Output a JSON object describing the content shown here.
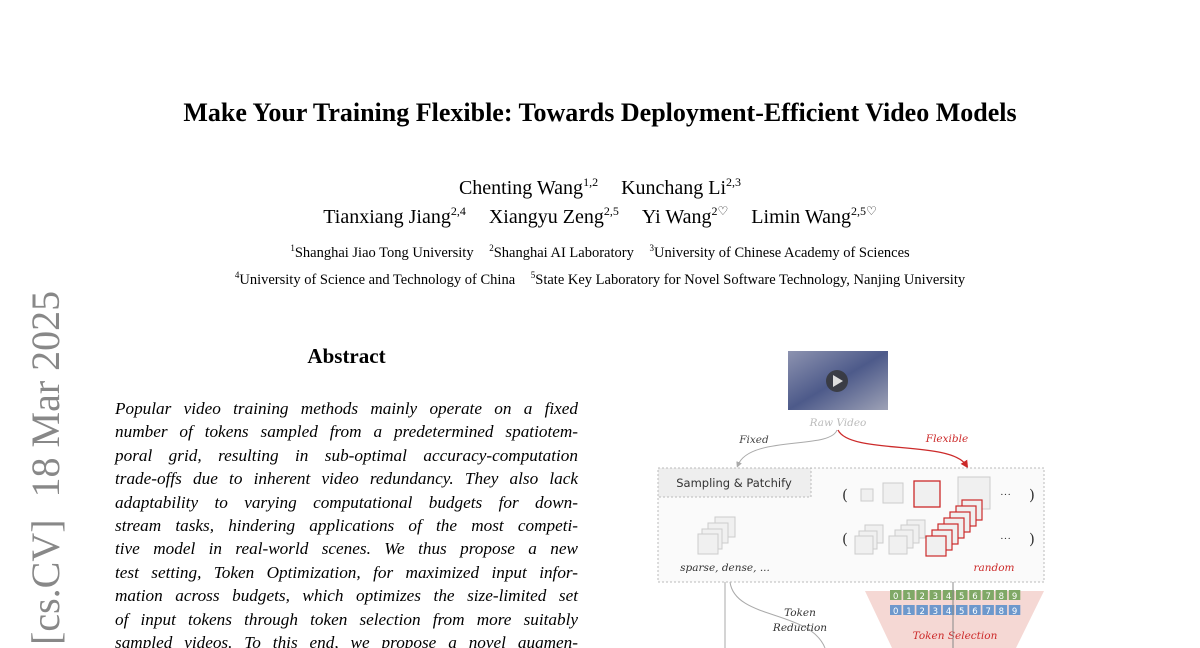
{
  "title": "Make Your Training Flexible: Towards Deployment-Efficient Video Models",
  "authors": [
    [
      {
        "name": "Chenting Wang",
        "sup": "1,2"
      },
      {
        "name": "Kunchang Li",
        "sup": "2,3"
      }
    ],
    [
      {
        "name": "Tianxiang Jiang",
        "sup": "2,4"
      },
      {
        "name": "Xiangyu Zeng",
        "sup": "2,5"
      },
      {
        "name": "Yi Wang",
        "sup": "2♡"
      },
      {
        "name": "Limin Wang",
        "sup": "2,5♡"
      }
    ]
  ],
  "affiliations": [
    [
      {
        "sup": "1",
        "name": "Shanghai Jiao Tong University"
      },
      {
        "sup": "2",
        "name": "Shanghai AI Laboratory"
      },
      {
        "sup": "3",
        "name": "University of Chinese Academy of Sciences"
      }
    ],
    [
      {
        "sup": "4",
        "name": "University of Science and Technology of China"
      },
      {
        "sup": "5",
        "name": "State Key Laboratory for Novel Software Technology, Nanjing University"
      }
    ]
  ],
  "arxiv": {
    "category": "[cs.CV]",
    "date": "18 Mar 2025"
  },
  "abstract": {
    "heading": "Abstract",
    "lines": [
      "Popular video training methods mainly operate on a fixed",
      "number of tokens sampled from a predetermined spatiotem-",
      "poral grid, resulting in sub-optimal accuracy-computation",
      "trade-offs due to inherent video redundancy. They also lack",
      "adaptability to varying computational budgets for down-",
      "stream tasks, hindering applications of the most competi-",
      "tive model in real-world scenes.  We thus propose a new",
      "test setting, Token Optimization, for maximized input infor-",
      "mation across budgets, which optimizes the size-limited set",
      "of input tokens through token selection from more suitably",
      "sampled videos.  To this end, we propose a novel augmen-"
    ]
  },
  "figure": {
    "raw_video": "Raw Video",
    "fixed": "Fixed",
    "flexible": "Flexible",
    "sampling": "Sampling & Patchify",
    "sparse": "sparse, dense, ...",
    "random": "random",
    "token_reduction": [
      "Token",
      "Reduction"
    ],
    "token_selection": "Token Selection",
    "ellipsis": "···",
    "digits": [
      "0",
      "1",
      "2",
      "3",
      "4",
      "5",
      "6",
      "7",
      "8",
      "9"
    ],
    "colors": {
      "red": "#cc2a2a",
      "green": "#7fa866",
      "blue": "#6d98cc",
      "pink": "#f5d8d4"
    }
  }
}
